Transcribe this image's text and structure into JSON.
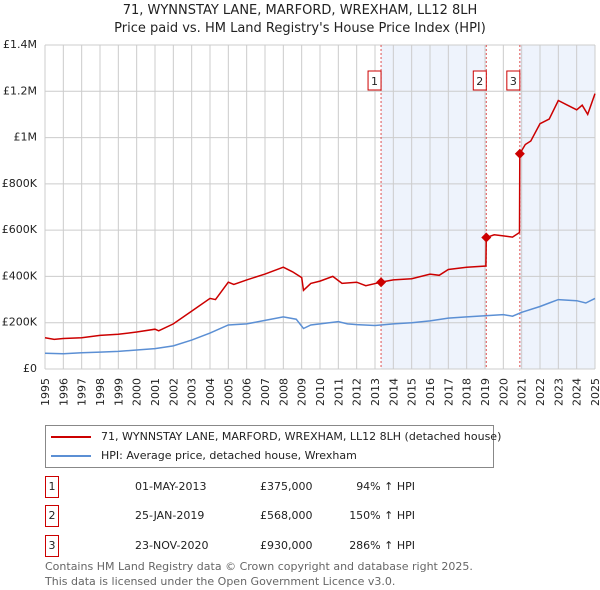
{
  "chart_data": {
    "type": "line",
    "title": "71, WYNNSTAY LANE, MARFORD, WREXHAM, LL12 8LH",
    "subtitle": "Price paid vs. HM Land Registry's House Price Index (HPI)",
    "xlim": [
      1995,
      2025
    ],
    "ylim": [
      0,
      1400000
    ],
    "yticks": [
      {
        "v": 0,
        "label": "£0"
      },
      {
        "v": 200000,
        "label": "£200K"
      },
      {
        "v": 400000,
        "label": "£400K"
      },
      {
        "v": 600000,
        "label": "£600K"
      },
      {
        "v": 800000,
        "label": "£800K"
      },
      {
        "v": 1000000,
        "label": "£1M"
      },
      {
        "v": 1200000,
        "label": "£1.2M"
      },
      {
        "v": 1400000,
        "label": "£1.4M"
      }
    ],
    "xticks": [
      "1995",
      "1996",
      "1997",
      "1998",
      "1999",
      "2000",
      "2001",
      "2002",
      "2003",
      "2004",
      "2005",
      "2006",
      "2007",
      "2008",
      "2009",
      "2010",
      "2011",
      "2012",
      "2013",
      "2014",
      "2015",
      "2016",
      "2017",
      "2018",
      "2019",
      "2020",
      "2021",
      "2022",
      "2023",
      "2024",
      "2025"
    ],
    "grid": true,
    "shaded_ranges": [
      [
        2013.33,
        2019.07
      ],
      [
        2020.9,
        2025
      ]
    ],
    "series": [
      {
        "name": "71, WYNNSTAY LANE, MARFORD, WREXHAM, LL12 8LH (detached house)",
        "color": "#cc0000",
        "x": [
          1995,
          1995.5,
          1996,
          1997,
          1998,
          1999,
          2000,
          2001,
          2001.2,
          2002,
          2003,
          2004,
          2004.3,
          2005,
          2005.3,
          2006,
          2007,
          2008,
          2008.5,
          2009,
          2009.1,
          2009.5,
          2010,
          2010.7,
          2011.2,
          2012,
          2012.5,
          2013.33,
          2014,
          2015,
          2016,
          2016.5,
          2017,
          2018,
          2019.05,
          2019.07,
          2019.5,
          2020,
          2020.5,
          2020.88,
          2020.9,
          2021.2,
          2021.5,
          2022,
          2022.5,
          2023,
          2023.5,
          2024,
          2024.3,
          2024.6,
          2025
        ],
        "y": [
          135000,
          128000,
          132000,
          135000,
          145000,
          150000,
          160000,
          172000,
          165000,
          195000,
          250000,
          305000,
          300000,
          375000,
          365000,
          385000,
          410000,
          440000,
          420000,
          395000,
          340000,
          370000,
          380000,
          400000,
          370000,
          375000,
          360000,
          375000,
          385000,
          390000,
          410000,
          405000,
          430000,
          440000,
          445000,
          568000,
          580000,
          575000,
          570000,
          590000,
          930000,
          970000,
          985000,
          1060000,
          1080000,
          1160000,
          1140000,
          1120000,
          1140000,
          1100000,
          1190000
        ]
      },
      {
        "name": "HPI: Average price, detached house, Wrexham",
        "color": "#5b8fd4",
        "x": [
          1995,
          1996,
          1997,
          1998,
          1999,
          2000,
          2001,
          2002,
          2003,
          2004,
          2005,
          2006,
          2007,
          2008,
          2008.7,
          2009.1,
          2009.5,
          2010,
          2011,
          2011.5,
          2012,
          2013,
          2014,
          2015,
          2016,
          2017,
          2018,
          2019,
          2020,
          2020.5,
          2021,
          2022,
          2022.5,
          2023,
          2024,
          2024.5,
          2025
        ],
        "y": [
          68000,
          66000,
          70000,
          73000,
          76000,
          82000,
          88000,
          100000,
          125000,
          155000,
          190000,
          195000,
          210000,
          225000,
          215000,
          175000,
          190000,
          195000,
          205000,
          195000,
          192000,
          188000,
          195000,
          200000,
          208000,
          220000,
          225000,
          230000,
          235000,
          228000,
          245000,
          270000,
          285000,
          300000,
          295000,
          285000,
          305000
        ]
      }
    ],
    "sales": [
      {
        "n": "1",
        "x": 2013.33,
        "y": 375000,
        "date": "01-MAY-2013",
        "price": "£375,000",
        "hpi": "94% ↑ HPI"
      },
      {
        "n": "2",
        "x": 2019.07,
        "y": 568000,
        "date": "25-JAN-2019",
        "price": "£568,000",
        "hpi": "150% ↑ HPI"
      },
      {
        "n": "3",
        "x": 2020.9,
        "y": 930000,
        "date": "23-NOV-2020",
        "price": "£930,000",
        "hpi": "286% ↑ HPI"
      }
    ]
  },
  "footer": {
    "line1": "Contains HM Land Registry data © Crown copyright and database right 2025.",
    "line2": "This data is licensed under the Open Government Licence v3.0."
  }
}
